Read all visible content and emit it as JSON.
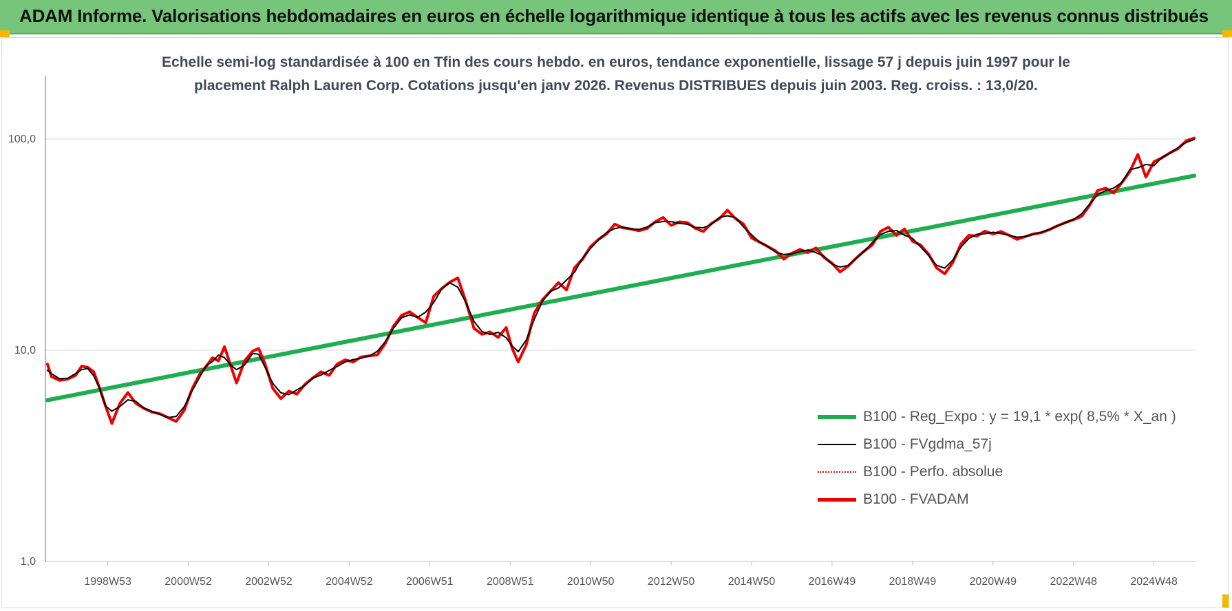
{
  "header": {
    "title": "ADAM Informe. Valorisations hebdomadaires en euros en échelle logarithmique identique à tous les actifs avec les revenus connus distribués"
  },
  "chart": {
    "subtitle_line1": "Echelle semi-log standardisée à 100 en Tfin des cours hebdo. en euros, tendance exponentielle, lissage 57 j depuis juin 1997 pour le",
    "subtitle_line2": "placement Ralph Lauren Corp. Cotations jusqu'en janv 2026. Revenus DISTRIBUES depuis juin 2003. Reg. croiss. : 13,0/20."
  },
  "colors": {
    "banner": "#77c57b",
    "regression": "#1fae4f",
    "smoothed": "#000000",
    "absolute": "#e60000",
    "fvadam": "#ee0000"
  },
  "chart_data": {
    "type": "line",
    "y_scale": "log",
    "ylim": [
      1,
      180
    ],
    "y_ticks": [
      1,
      10,
      100
    ],
    "y_tick_labels": [
      "1,0",
      "10,0",
      "100,0"
    ],
    "xlim": [
      1997.45,
      2026.05
    ],
    "x_ticks": [
      1999.0,
      2001.0,
      2003.0,
      2005.0,
      2007.0,
      2009.0,
      2011.0,
      2013.0,
      2015.0,
      2017.0,
      2019.0,
      2021.0,
      2023.0,
      2025.0
    ],
    "x_tick_labels": [
      "1998W53",
      "2000W52",
      "2002W52",
      "2004W52",
      "2006W51",
      "2008W51",
      "2010W50",
      "2012W50",
      "2014W50",
      "2016W49",
      "2018W49",
      "2020W49",
      "2022W48",
      "2024W48"
    ],
    "grid": true,
    "legend_position": "bottom-right",
    "series": [
      {
        "name": "B100 - Reg_Expo : y = 19,1 * exp( 8,5% *  X_an )",
        "style": "regression",
        "x": [
          1997.5,
          2026.0
        ],
        "y": [
          5.8,
          67.0
        ]
      },
      {
        "name": "B100 - FVgdma_57j",
        "style": "smoothed",
        "x": [],
        "y": []
      },
      {
        "name": "B100 - Perfo. absolue",
        "style": "absolute",
        "x": [],
        "y": []
      },
      {
        "name": "B100 - FVADAM",
        "style": "fvadam",
        "x": [
          1997.5,
          1997.6,
          1997.8,
          1998.0,
          1998.2,
          1998.35,
          1998.5,
          1998.65,
          1998.8,
          1998.95,
          1999.1,
          1999.3,
          1999.5,
          1999.7,
          1999.9,
          2000.1,
          2000.3,
          2000.5,
          2000.7,
          2000.9,
          2001.1,
          2001.3,
          2001.45,
          2001.6,
          2001.75,
          2001.9,
          2002.05,
          2002.2,
          2002.4,
          2002.6,
          2002.75,
          2002.9,
          2003.1,
          2003.3,
          2003.5,
          2003.7,
          2003.9,
          2004.1,
          2004.3,
          2004.5,
          2004.7,
          2004.9,
          2005.1,
          2005.3,
          2005.5,
          2005.7,
          2005.9,
          2006.1,
          2006.3,
          2006.5,
          2006.7,
          2006.9,
          2007.1,
          2007.3,
          2007.5,
          2007.7,
          2007.9,
          2008.1,
          2008.3,
          2008.5,
          2008.7,
          2008.9,
          2009.05,
          2009.2,
          2009.4,
          2009.6,
          2009.8,
          2010.0,
          2010.2,
          2010.4,
          2010.6,
          2010.8,
          2011.0,
          2011.2,
          2011.4,
          2011.6,
          2011.8,
          2012.0,
          2012.2,
          2012.4,
          2012.6,
          2012.8,
          2013.0,
          2013.2,
          2013.4,
          2013.6,
          2013.8,
          2014.0,
          2014.2,
          2014.4,
          2014.6,
          2014.8,
          2015.0,
          2015.2,
          2015.4,
          2015.6,
          2015.8,
          2016.0,
          2016.2,
          2016.4,
          2016.6,
          2016.8,
          2017.0,
          2017.2,
          2017.4,
          2017.6,
          2017.8,
          2018.0,
          2018.2,
          2018.4,
          2018.6,
          2018.8,
          2019.0,
          2019.2,
          2019.4,
          2019.6,
          2019.8,
          2020.0,
          2020.2,
          2020.4,
          2020.6,
          2020.8,
          2021.0,
          2021.2,
          2021.4,
          2021.6,
          2021.8,
          2022.0,
          2022.2,
          2022.4,
          2022.6,
          2022.8,
          2023.0,
          2023.2,
          2023.4,
          2023.6,
          2023.8,
          2024.0,
          2024.2,
          2024.4,
          2024.6,
          2024.8,
          2025.0,
          2025.2,
          2025.4,
          2025.6,
          2025.8,
          2026.0
        ],
        "y": [
          8.6,
          7.5,
          7.2,
          7.3,
          7.6,
          8.4,
          8.3,
          7.9,
          6.6,
          5.4,
          4.5,
          5.6,
          6.3,
          5.6,
          5.3,
          5.1,
          5.0,
          4.8,
          4.6,
          5.2,
          6.6,
          7.8,
          8.4,
          9.2,
          8.9,
          10.4,
          8.5,
          7.0,
          8.9,
          9.9,
          10.2,
          8.7,
          6.6,
          5.9,
          6.4,
          6.2,
          6.9,
          7.4,
          7.9,
          7.6,
          8.6,
          9.0,
          8.8,
          9.3,
          9.4,
          9.5,
          10.8,
          13.0,
          14.6,
          15.2,
          14.3,
          13.5,
          18.0,
          19.6,
          21.0,
          22.0,
          17.0,
          12.7,
          11.9,
          12.2,
          11.5,
          12.8,
          10.2,
          8.8,
          10.6,
          15.0,
          17.3,
          19.0,
          20.9,
          19.3,
          24.6,
          27.0,
          31.0,
          33.5,
          35.6,
          39.5,
          38.0,
          37.5,
          36.8,
          37.7,
          40.5,
          42.5,
          39.0,
          40.5,
          40.2,
          37.8,
          36.5,
          39.8,
          42.0,
          46.0,
          42.0,
          39.5,
          34.0,
          32.5,
          31.0,
          29.5,
          27.0,
          28.8,
          30.0,
          29.0,
          30.5,
          27.5,
          25.8,
          23.5,
          25.0,
          27.3,
          29.5,
          31.5,
          36.5,
          38.2,
          35.0,
          37.5,
          32.8,
          31.5,
          28.5,
          24.5,
          23.0,
          26.0,
          31.8,
          35.0,
          34.7,
          36.6,
          35.5,
          36.5,
          35.0,
          33.5,
          34.5,
          35.5,
          36.0,
          37.2,
          38.8,
          40.2,
          41.5,
          43.0,
          48.5,
          57.0,
          58.5,
          55.5,
          62.0,
          70.0,
          84.5,
          66.0,
          78.0,
          81.5,
          86.0,
          90.0,
          98.0,
          101.0
        ]
      }
    ]
  },
  "legend": [
    {
      "label": "B100 - Reg_Expo : y = 19,1 * exp( 8,5% *  X_an )",
      "style": "regression"
    },
    {
      "label": "B100 - FVgdma_57j",
      "style": "smoothed"
    },
    {
      "label": "B100 - Perfo. absolue",
      "style": "absolute"
    },
    {
      "label": "B100 - FVADAM",
      "style": "fvadam"
    }
  ]
}
